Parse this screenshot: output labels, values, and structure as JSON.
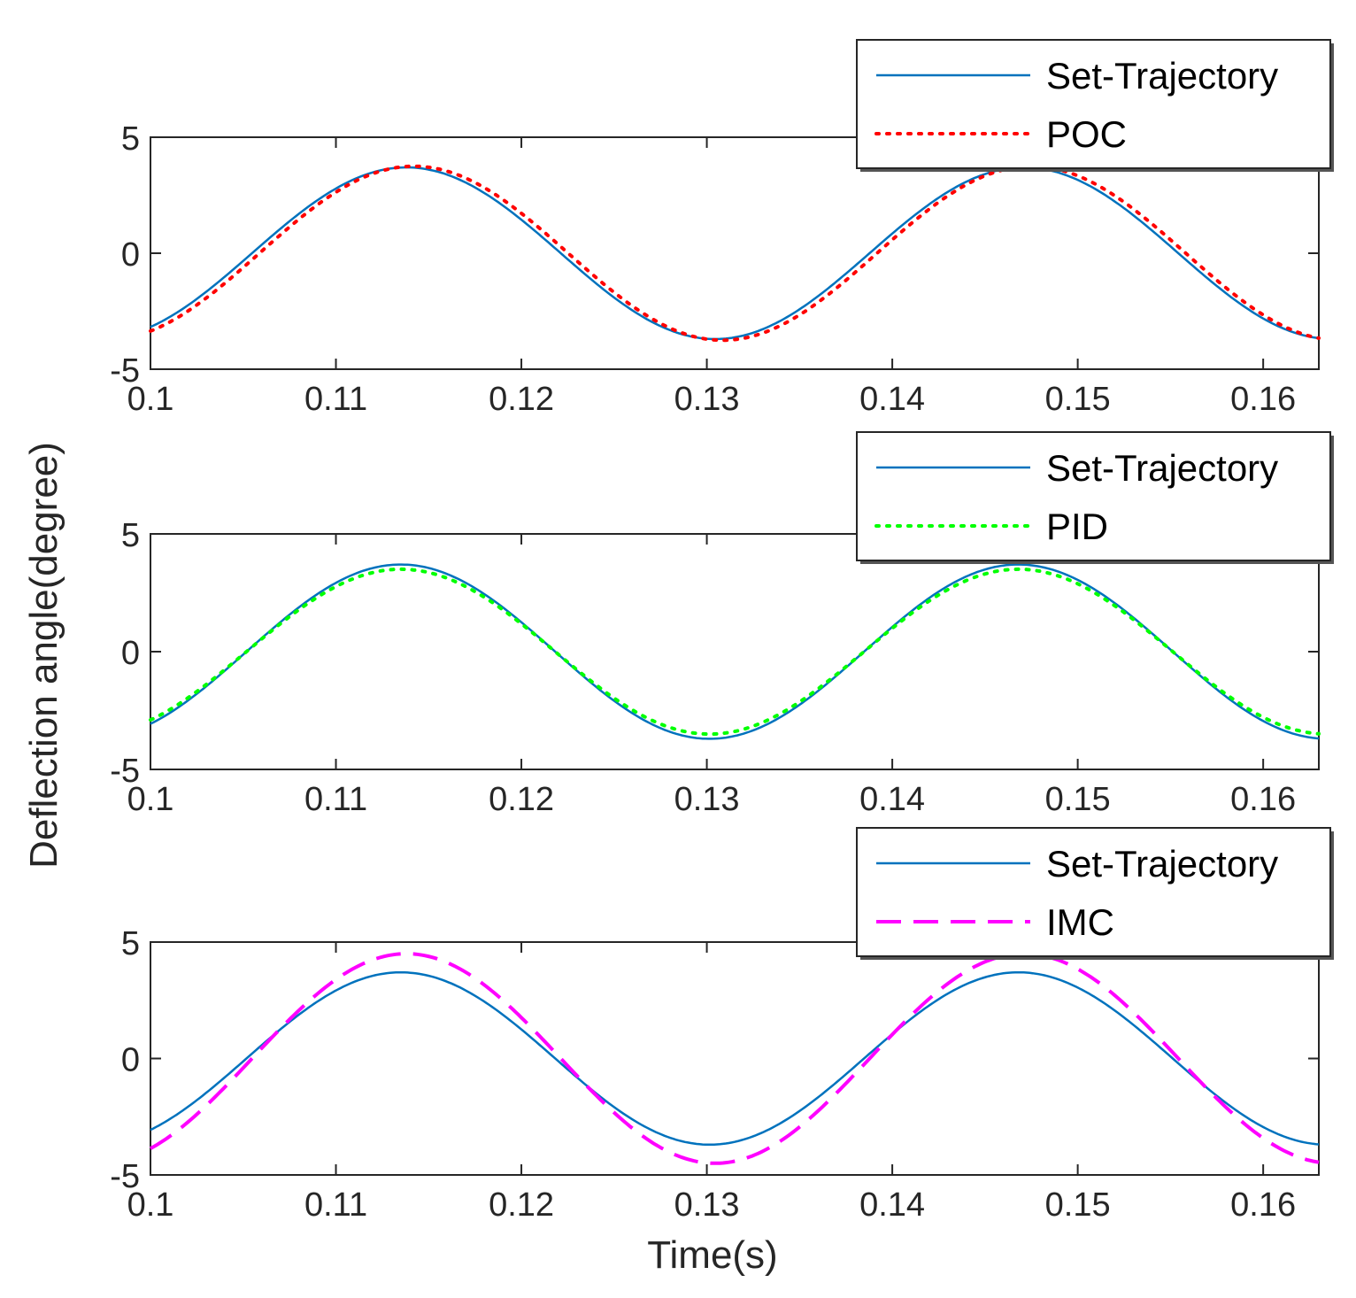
{
  "figure": {
    "ylabel": "Deflection angle(degree)",
    "xlabel": "Time(s)"
  },
  "chart_data": [
    {
      "type": "line",
      "panel": "top",
      "xlim": [
        0.1,
        0.163
      ],
      "ylim": [
        -5,
        5
      ],
      "xticks": [
        0.1,
        0.11,
        0.12,
        0.13,
        0.14,
        0.15,
        0.16
      ],
      "xtick_labels": [
        "0.1",
        "0.11",
        "0.12",
        "0.13",
        "0.14",
        "0.15",
        "0.16"
      ],
      "yticks": [
        -5,
        0,
        5
      ],
      "ytick_labels": [
        "-5",
        "0",
        "5"
      ],
      "legend": "top-right",
      "series": [
        {
          "name": "Set-Trajectory",
          "color": "#0072BD",
          "style": "solid",
          "amplitude": 3.7,
          "period": 0.0333,
          "peak_at": 0.1138
        },
        {
          "name": "POC",
          "color": "#FF0000",
          "style": "dotted",
          "amplitude": 3.75,
          "period": 0.0333,
          "peak_at": 0.1142
        }
      ]
    },
    {
      "type": "line",
      "panel": "middle",
      "xlim": [
        0.1,
        0.163
      ],
      "ylim": [
        -5,
        5
      ],
      "xticks": [
        0.1,
        0.11,
        0.12,
        0.13,
        0.14,
        0.15,
        0.16
      ],
      "xtick_labels": [
        "0.1",
        "0.11",
        "0.12",
        "0.13",
        "0.14",
        "0.15",
        "0.16"
      ],
      "yticks": [
        -5,
        0,
        5
      ],
      "ytick_labels": [
        "-5",
        "0",
        "5"
      ],
      "legend": "top-right",
      "series": [
        {
          "name": "Set-Trajectory",
          "color": "#0072BD",
          "style": "solid",
          "amplitude": 3.7,
          "period": 0.0333,
          "peak_at": 0.1135
        },
        {
          "name": "PID",
          "color": "#00FF00",
          "style": "dotted",
          "amplitude": 3.5,
          "period": 0.0333,
          "peak_at": 0.1135
        }
      ]
    },
    {
      "type": "line",
      "panel": "bottom",
      "xlim": [
        0.1,
        0.163
      ],
      "ylim": [
        -5,
        5
      ],
      "xticks": [
        0.1,
        0.11,
        0.12,
        0.13,
        0.14,
        0.15,
        0.16
      ],
      "xtick_labels": [
        "0.1",
        "0.11",
        "0.12",
        "0.13",
        "0.14",
        "0.15",
        "0.16"
      ],
      "yticks": [
        -5,
        0,
        5
      ],
      "ytick_labels": [
        "-5",
        "0",
        "5"
      ],
      "legend": "top-right",
      "series": [
        {
          "name": "Set-Trajectory",
          "color": "#0072BD",
          "style": "solid",
          "amplitude": 3.7,
          "period": 0.0333,
          "peak_at": 0.1135
        },
        {
          "name": "IMC",
          "color": "#FF00FF",
          "style": "dashed",
          "amplitude": 4.5,
          "period": 0.0333,
          "peak_at": 0.1138
        }
      ]
    }
  ]
}
